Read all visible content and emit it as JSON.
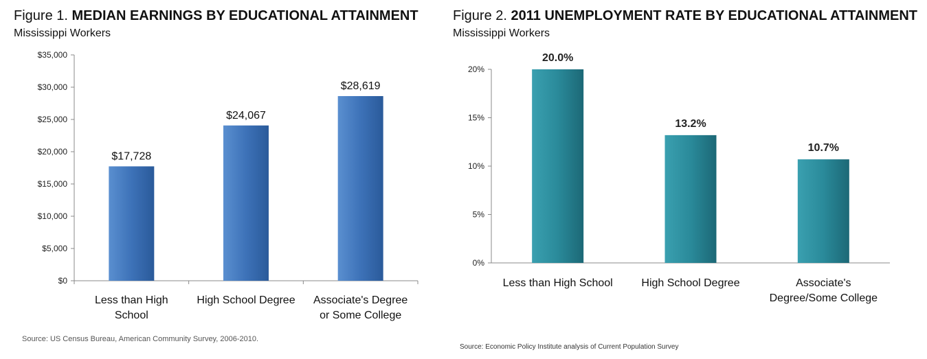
{
  "chart_data": [
    {
      "type": "bar",
      "title_prefix": "Figure 1.",
      "title": "MEDIAN EARNINGS BY EDUCATIONAL ATTAINMENT",
      "subtitle": "Mississippi Workers",
      "categories": [
        [
          "Less than High",
          "School"
        ],
        [
          "High School Degree"
        ],
        [
          "Associate's Degree",
          "or Some College"
        ]
      ],
      "values": [
        17728,
        24067,
        28619
      ],
      "data_labels": [
        "$17,728",
        "$24,067",
        "$28,619"
      ],
      "ylim": [
        0,
        35000
      ],
      "y_ticks": [
        0,
        5000,
        10000,
        15000,
        20000,
        25000,
        30000,
        35000
      ],
      "y_tick_labels": [
        "$0",
        "$5,000",
        "$10,000",
        "$15,000",
        "$20,000",
        "$25,000",
        "$30,000",
        "$35,000"
      ],
      "grid": false,
      "bar_color": "#3d72b8",
      "source": "Source: US Census Bureau, American Community Survey, 2006-2010."
    },
    {
      "type": "bar",
      "title_prefix": "Figure 2.",
      "title": "2011 UNEMPLOYMENT RATE BY EDUCATIONAL ATTAINMENT",
      "subtitle": "Mississippi Workers",
      "categories": [
        [
          "Less than High School"
        ],
        [
          "High School Degree"
        ],
        [
          "Associate's",
          "Degree/Some College"
        ]
      ],
      "values": [
        20.0,
        13.2,
        10.7
      ],
      "data_labels": [
        "20.0%",
        "13.2%",
        "10.7%"
      ],
      "ylim": [
        0,
        20
      ],
      "y_ticks": [
        0,
        5,
        10,
        15,
        20
      ],
      "y_tick_labels": [
        "0%",
        "5%",
        "10%",
        "15%",
        "20%"
      ],
      "grid": false,
      "bar_color": "#2a8a9a",
      "source": "Source: Economic Policy Institute analysis of Current Population Survey"
    }
  ]
}
